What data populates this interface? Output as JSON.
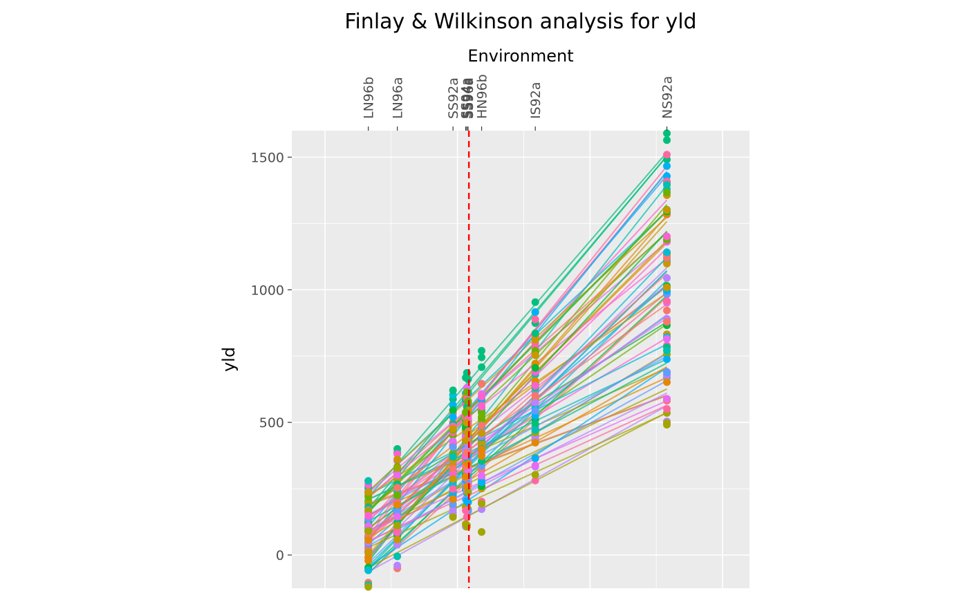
{
  "chart_data": {
    "type": "line",
    "title": "Finlay & Wilkinson analysis for yld",
    "xlabel": "Environment",
    "ylabel": "yld",
    "top_axis_position": "top",
    "ylim": [
      -125,
      1600
    ],
    "yticks": [
      0,
      500,
      1000,
      1500
    ],
    "grid": true,
    "legend": "none",
    "environments": [
      {
        "name": "LN96b",
        "x": 109
      },
      {
        "name": "LN96a",
        "x": 182
      },
      {
        "name": "SS92a",
        "x": 322
      },
      {
        "name": "SS94a",
        "x": 354
      },
      {
        "name": "SS94a",
        "x": 357
      },
      {
        "name": "SS96a",
        "x": 360
      },
      {
        "name": "HN96b",
        "x": 394
      },
      {
        "name": "IS92a",
        "x": 529
      },
      {
        "name": "NS92a",
        "x": 860
      }
    ],
    "mean_environment": 362,
    "reference_line_color": "#ff0000",
    "series_palette": [
      "#F8766D",
      "#E58700",
      "#C99800",
      "#A3A500",
      "#6BB100",
      "#00BA38",
      "#00BF7D",
      "#00C0AF",
      "#00BCD8",
      "#00B0F6",
      "#619CFF",
      "#B983FF",
      "#E76BF3",
      "#FD61D1",
      "#FF67A4"
    ],
    "genotype_count": 64,
    "line_range_at_LN96b": [
      -70,
      240
    ],
    "line_range_at_NS92a": [
      530,
      1520
    ]
  }
}
